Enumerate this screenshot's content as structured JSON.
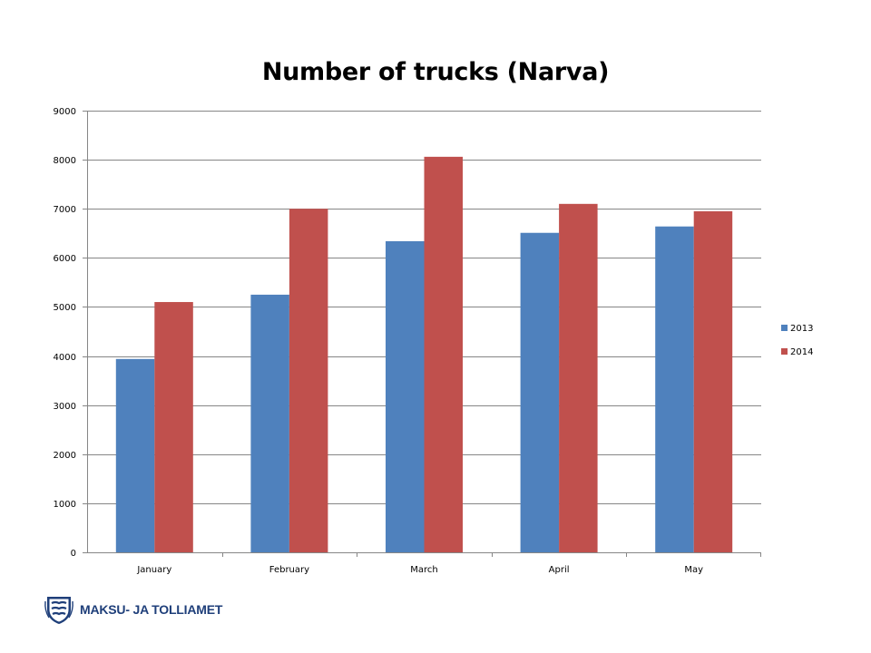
{
  "footer": {
    "organization": "MAKSU- JA TOLLIAMET",
    "logo_icon": "coat-of-arms-three-lions-shield-icon"
  },
  "chart_data": {
    "type": "bar",
    "title": "Number of trucks (Narva)",
    "xlabel": "",
    "ylabel": "",
    "categories": [
      "January",
      "February",
      "March",
      "April",
      "May"
    ],
    "series": [
      {
        "name": "2013",
        "color": "#4f81bd",
        "values": [
          3940,
          5250,
          6340,
          6510,
          6640
        ]
      },
      {
        "name": "2014",
        "color": "#c0504d",
        "values": [
          5100,
          7000,
          8060,
          7100,
          6950
        ]
      }
    ],
    "ylim": [
      0,
      9000
    ],
    "yticks": [
      0,
      1000,
      2000,
      3000,
      4000,
      5000,
      6000,
      7000,
      8000,
      9000
    ],
    "grid": true,
    "legend": "right"
  }
}
